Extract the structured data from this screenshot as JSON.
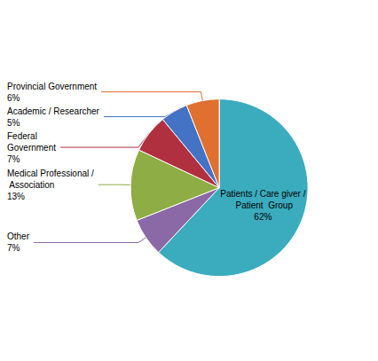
{
  "chart_data": {
    "type": "pie",
    "categories": [
      "Patients / Care giver /\n Patient  Group\n62%",
      "Other\n7%",
      "Medical Professional /\n Association\n13%",
      "Federal\nGovernment\n7%",
      "Academic / Researcher\n5%",
      "Provincial Government\n6%"
    ],
    "values": [
      62,
      7,
      13,
      7,
      5,
      6
    ],
    "colors": [
      "#3aacbe",
      "#8b68a6",
      "#8fad45",
      "#b03040",
      "#4472c4",
      "#e07030"
    ]
  }
}
